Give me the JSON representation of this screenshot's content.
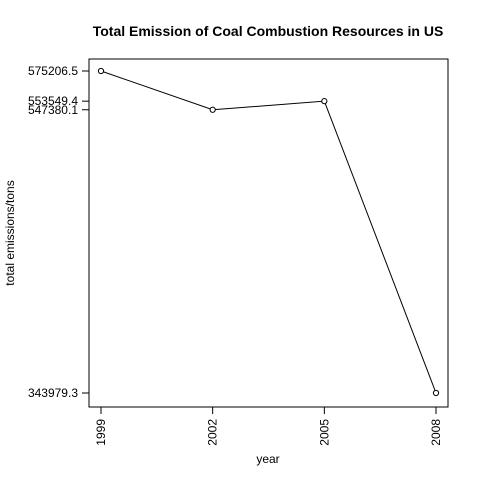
{
  "chart_data": {
    "type": "line",
    "title": "Total Emission of Coal Combustion Resources in US",
    "xlabel": "year",
    "ylabel": "total emissions/tons",
    "x": [
      1999,
      2002,
      2005,
      2008
    ],
    "x_tick_labels": [
      "1999",
      "2002",
      "2005",
      "2008"
    ],
    "y_tick_values": [
      575206.5,
      553549.4,
      547380.1,
      343979.3
    ],
    "y_tick_labels": [
      "575206.5",
      "553549.4",
      "547380.1",
      "343979.3"
    ],
    "series": [
      {
        "values": [
          575206.5,
          547380.1,
          553549.4,
          343979.3
        ],
        "marker": "open-circle",
        "color": "#000000"
      }
    ],
    "xlim": [
      1999,
      2008
    ],
    "ylim": [
      343979.3,
      575206.5
    ],
    "grid": false,
    "legend": "none"
  }
}
